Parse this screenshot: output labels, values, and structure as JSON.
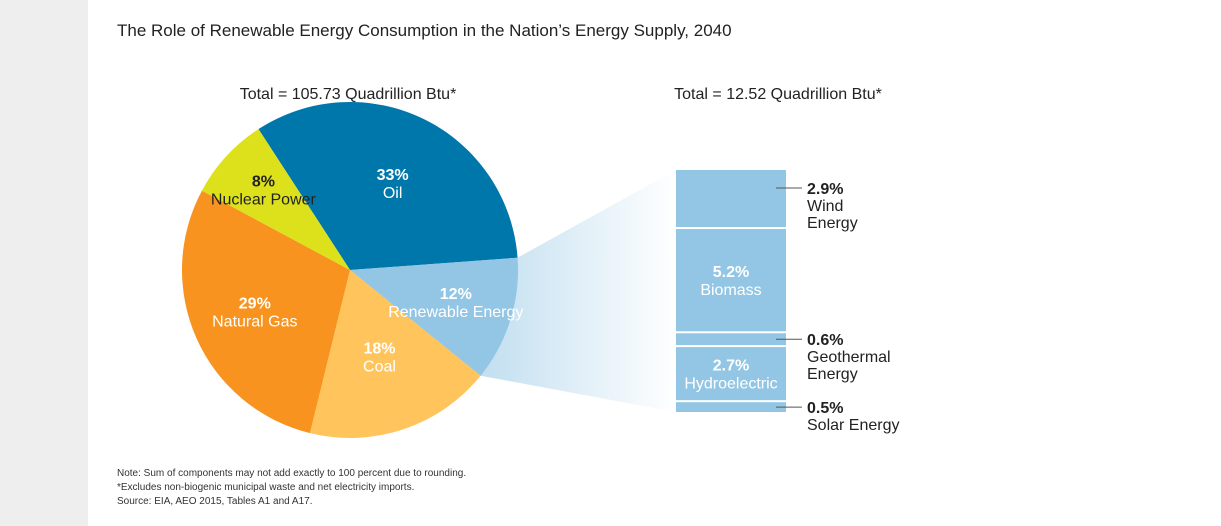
{
  "chart_data": [
    {
      "type": "pie",
      "title": "The Role of Renewable Energy Consumption in the Nation’s Energy Supply, 2040",
      "subtitle": "Total = 105.73 Quadrillion Btu*",
      "slices": [
        {
          "name": "Oil",
          "pct_label": "33%",
          "value": 33,
          "color": "#0077aa",
          "text_color": "#ffffff"
        },
        {
          "name": "Renewable Energy",
          "pct_label": "12%",
          "value": 12,
          "color": "#93c6e4",
          "text_color": "#ffffff"
        },
        {
          "name": "Coal",
          "pct_label": "18%",
          "value": 18,
          "color": "#ffc55c",
          "text_color": "#ffffff"
        },
        {
          "name": "Natural Gas",
          "pct_label": "29%",
          "value": 29,
          "color": "#f7931e",
          "text_color": "#ffffff"
        },
        {
          "name": "Nuclear Power",
          "pct_label": "8%",
          "value": 8,
          "color": "#dde11b",
          "text_color": "#222222"
        }
      ]
    },
    {
      "type": "bar",
      "stacked": true,
      "subtitle": "Total = 12.52 Quadrillion Btu*",
      "segments": [
        {
          "name": "Wind Energy",
          "name_lines": [
            "Wind",
            "Energy"
          ],
          "pct_label": "2.9%",
          "value": 2.9,
          "label_position": "outside"
        },
        {
          "name": "Biomass",
          "name_lines": [
            "Biomass"
          ],
          "pct_label": "5.2%",
          "value": 5.2,
          "label_position": "inside"
        },
        {
          "name": "Geothermal Energy",
          "name_lines": [
            "Geothermal",
            "Energy"
          ],
          "pct_label": "0.6%",
          "value": 0.6,
          "label_position": "outside"
        },
        {
          "name": "Hydroelectric",
          "name_lines": [
            "Hydroelectric"
          ],
          "pct_label": "2.7%",
          "value": 2.7,
          "label_position": "inside"
        },
        {
          "name": "Solar Energy",
          "name_lines": [
            "Solar Energy"
          ],
          "pct_label": "0.5%",
          "value": 0.5,
          "label_position": "outside"
        }
      ],
      "color": "#93c6e4"
    }
  ],
  "notes": [
    "Note: Sum of components may not add exactly to 100 percent due to rounding.",
    "*Excludes non-biogenic municipal waste and net electricity imports.",
    "Source: EIA, AEO 2015, Tables A1 and A17."
  ]
}
